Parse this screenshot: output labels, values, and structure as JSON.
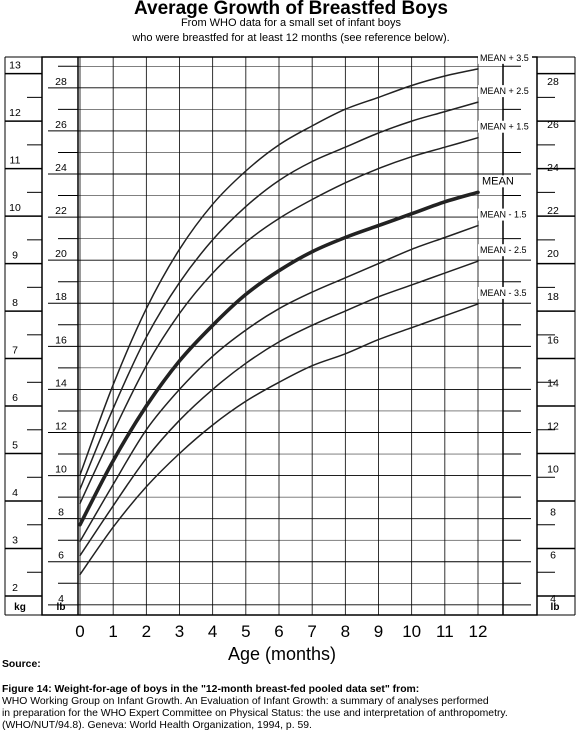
{
  "title": "Average Growth of Breastfed Boys",
  "subtitle_line1": "From WHO data for a small set of infant boys",
  "subtitle_line2": "who were breastfed for at least 12 months (see reference below).",
  "source_label": "Source:",
  "figure_caption": "Figure 14: Weight-for-age of boys in the \"12-month breast-fed pooled data set\" from:",
  "reference_lines": [
    "WHO Working Group on Infant Growth. An Evaluation of Infant Growth: a summary of analyses performed",
    "in preparation for the WHO Expert Committee on Physical Status: the use and interpretation of anthropometry.",
    "(WHO/NUT/94.8). Geneva: World Health Organization, 1994, p. 59."
  ],
  "chart_data": {
    "type": "line",
    "xlabel": "Age (months)",
    "x": [
      0,
      1,
      2,
      3,
      4,
      5,
      6,
      7,
      8,
      9,
      10,
      11,
      12
    ],
    "xlim": [
      0,
      12
    ],
    "kg_axis": {
      "unit": "kg",
      "range": [
        1.6,
        13.35
      ],
      "ticks": [
        2,
        3,
        4,
        5,
        6,
        7,
        8,
        9,
        10,
        11,
        12,
        13
      ]
    },
    "lb_axis": {
      "unit": "lb",
      "ticks": [
        4,
        6,
        8,
        10,
        12,
        14,
        16,
        18,
        20,
        22,
        24,
        26,
        28
      ]
    },
    "grid": true,
    "series": [
      {
        "name": "MEAN + 3.5",
        "values": [
          4.55,
          6.45,
          8.05,
          9.3,
          10.25,
          10.95,
          11.5,
          11.9,
          12.25,
          12.5,
          12.75,
          12.95,
          13.1
        ]
      },
      {
        "name": "MEAN + 2.5",
        "values": [
          4.25,
          5.95,
          7.45,
          8.6,
          9.5,
          10.2,
          10.75,
          11.15,
          11.45,
          11.75,
          12.0,
          12.2,
          12.4
        ]
      },
      {
        "name": "MEAN + 1.5",
        "values": [
          3.95,
          5.45,
          6.85,
          7.95,
          8.8,
          9.45,
          9.95,
          10.35,
          10.7,
          11.0,
          11.25,
          11.45,
          11.65
        ]
      },
      {
        "name": "MEAN",
        "values": [
          3.5,
          4.85,
          6.0,
          6.95,
          7.7,
          8.35,
          8.85,
          9.25,
          9.55,
          9.8,
          10.05,
          10.3,
          10.5
        ]
      },
      {
        "name": "MEAN - 1.5",
        "values": [
          3.15,
          4.35,
          5.5,
          6.35,
          7.05,
          7.6,
          8.05,
          8.4,
          8.7,
          9.0,
          9.3,
          9.55,
          9.8
        ]
      },
      {
        "name": "MEAN - 2.5",
        "values": [
          2.85,
          3.9,
          4.9,
          5.7,
          6.35,
          6.9,
          7.35,
          7.7,
          8.0,
          8.3,
          8.55,
          8.8,
          9.05
        ]
      },
      {
        "name": "MEAN - 3.5",
        "values": [
          2.45,
          3.45,
          4.3,
          5.0,
          5.6,
          6.1,
          6.5,
          6.85,
          7.1,
          7.4,
          7.65,
          7.9,
          8.15
        ]
      }
    ]
  }
}
